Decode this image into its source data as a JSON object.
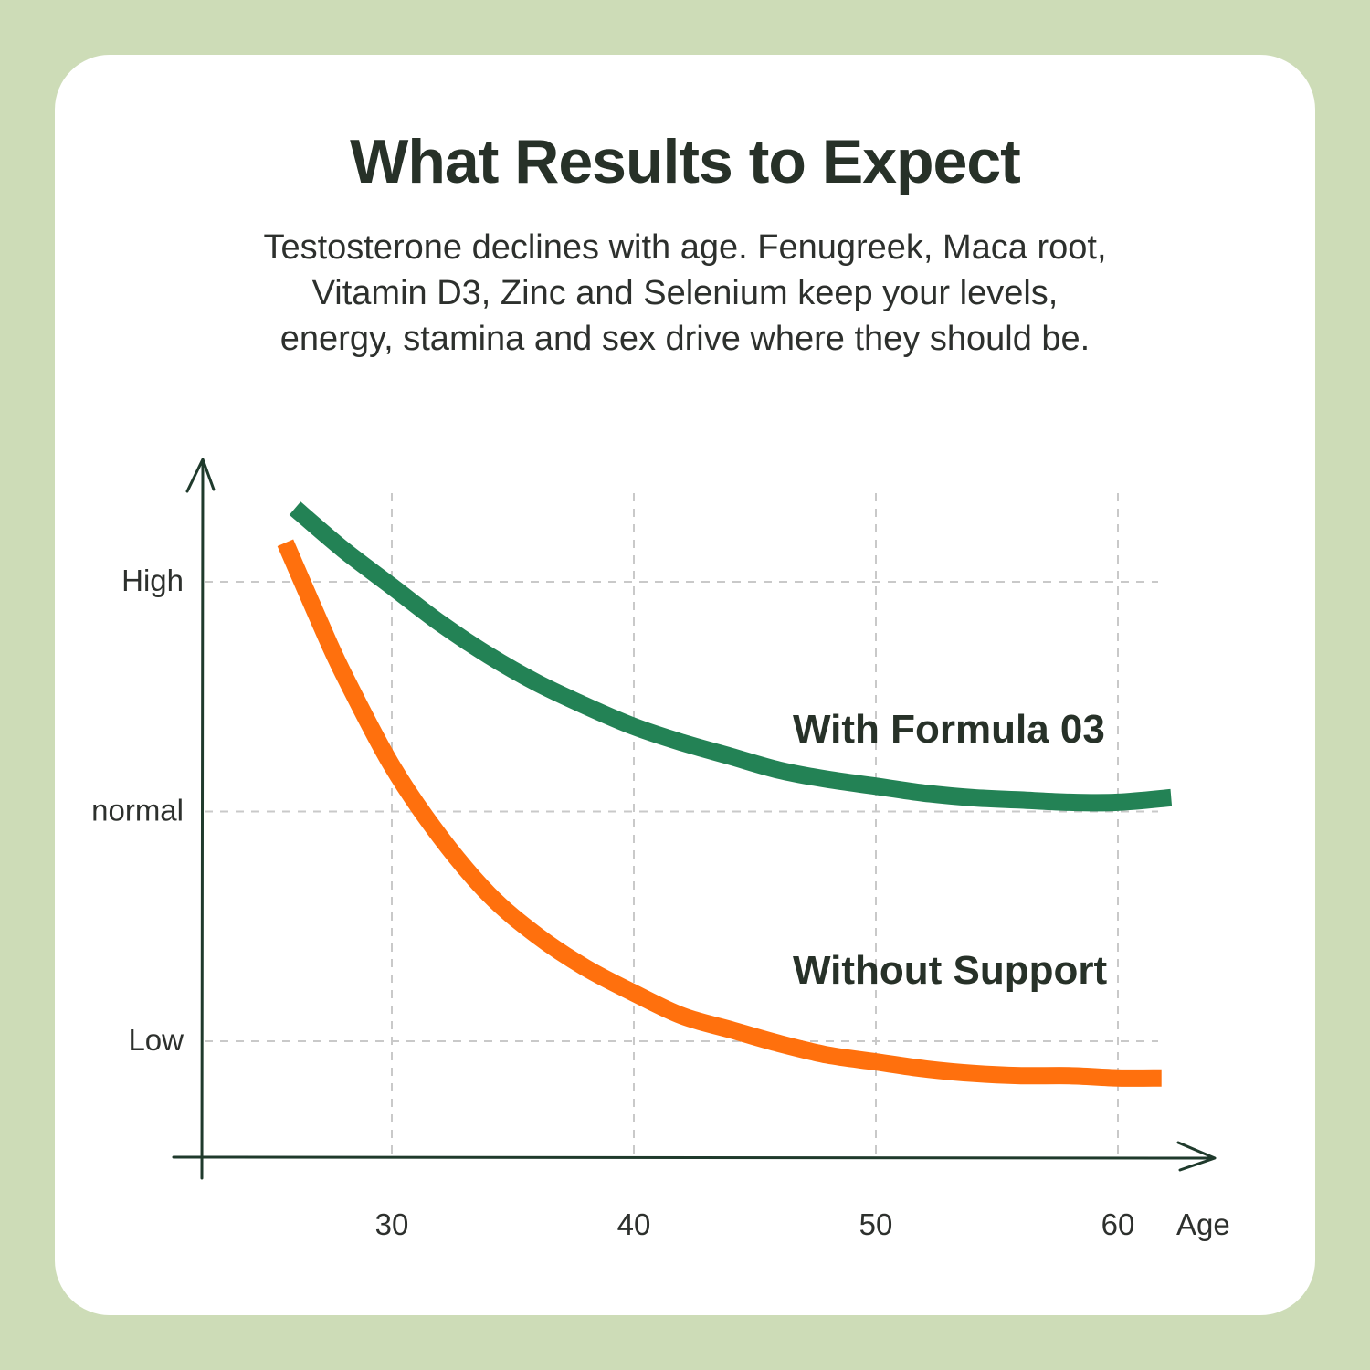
{
  "title": "What Results to Expect",
  "subtitle_lines": [
    "Testosterone declines with age. Fenugreek, Maca root,",
    "Vitamin D3, Zinc and Selenium keep your levels,",
    "energy, stamina and sex drive where they should be."
  ],
  "colors": {
    "background": "#cddcb7",
    "card": "#ffffff",
    "axis": "#1f3a2c",
    "grid": "#c9c9c9",
    "with_formula": "#238255",
    "without_support": "#ff700d"
  },
  "chart_data": {
    "type": "line",
    "title": "",
    "xlabel": "Age",
    "ylabel": "",
    "x_ticks": [
      30,
      40,
      50,
      60
    ],
    "x_tick_labels": [
      "30",
      "40",
      "50",
      "60"
    ],
    "y_levels": [
      {
        "label": "High",
        "value": 3
      },
      {
        "label": "normal",
        "value": 2
      },
      {
        "label": "Low",
        "value": 1
      }
    ],
    "xlim": [
      22.6,
      64
    ],
    "ylim": [
      0.5,
      3.5
    ],
    "grid": true,
    "series": [
      {
        "name": "With Formula 03",
        "color": "#238255",
        "x": [
          26,
          28,
          30,
          32,
          34,
          36,
          38,
          40,
          42,
          44,
          46,
          48,
          50,
          52,
          54,
          56,
          58,
          60,
          62.2
        ],
        "y": [
          3.32,
          3.14,
          2.98,
          2.82,
          2.68,
          2.56,
          2.46,
          2.37,
          2.3,
          2.24,
          2.18,
          2.14,
          2.11,
          2.08,
          2.06,
          2.05,
          2.04,
          2.04,
          2.06
        ]
      },
      {
        "name": "Without Support",
        "color": "#ff700d",
        "x": [
          25.6,
          27,
          28,
          30,
          32,
          34,
          36,
          38,
          40,
          42,
          44,
          46,
          48,
          50,
          52,
          54,
          56,
          58,
          60,
          61.8
        ],
        "y": [
          3.17,
          2.83,
          2.6,
          2.2,
          1.89,
          1.64,
          1.46,
          1.32,
          1.21,
          1.11,
          1.05,
          0.99,
          0.94,
          0.91,
          0.88,
          0.86,
          0.85,
          0.85,
          0.84,
          0.84
        ]
      }
    ]
  }
}
